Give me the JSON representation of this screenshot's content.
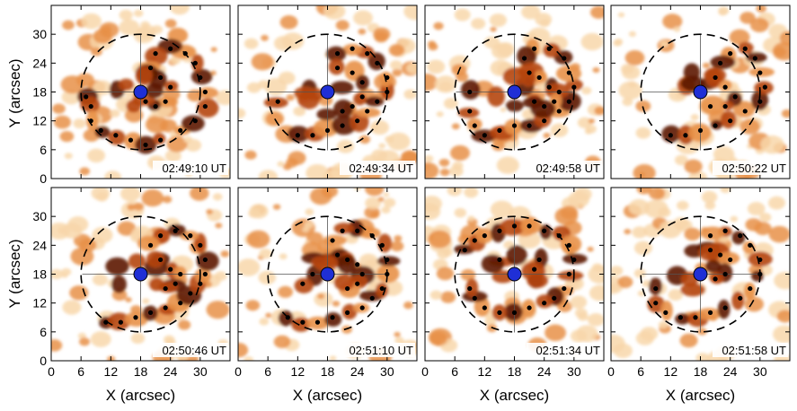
{
  "figure": {
    "x_axis_title": "X (arcsec)",
    "y_axis_title": "Y (arcsec)",
    "x_ticks": [
      0,
      6,
      12,
      18,
      24,
      30
    ],
    "y_ticks": [
      0,
      6,
      12,
      18,
      24,
      30
    ],
    "x_range": [
      0,
      36
    ],
    "y_range": [
      0,
      36
    ],
    "colors": {
      "dark": "#5c1a05",
      "mid": "#b5450f",
      "light": "#e89148",
      "pale": "#f8d7aa",
      "background": "#ffffff",
      "center_marker": "#1f2fd6",
      "dots": "#000000"
    }
  },
  "chart_data": [
    {
      "type": "image-panel",
      "timestamp": "02:49:10 UT",
      "center": [
        18,
        18
      ],
      "dots": [
        [
          7,
          17
        ],
        [
          8,
          15
        ],
        [
          8,
          12
        ],
        [
          10,
          10
        ],
        [
          13,
          9
        ],
        [
          16,
          8
        ],
        [
          19,
          7
        ],
        [
          22,
          8
        ],
        [
          26,
          10
        ],
        [
          29,
          12
        ],
        [
          31,
          15
        ],
        [
          31,
          18
        ],
        [
          30,
          21
        ],
        [
          29,
          24
        ],
        [
          27,
          26
        ],
        [
          24,
          27
        ],
        [
          21,
          26
        ],
        [
          20,
          23
        ],
        [
          22,
          21
        ],
        [
          24,
          19
        ],
        [
          23,
          16
        ],
        [
          21,
          15
        ],
        [
          19,
          16
        ]
      ]
    },
    {
      "type": "image-panel",
      "timestamp": "02:49:34 UT",
      "center": [
        18,
        18
      ],
      "dots": [
        [
          12,
          9
        ],
        [
          15,
          9
        ],
        [
          18,
          10
        ],
        [
          21,
          11
        ],
        [
          24,
          12
        ],
        [
          26,
          14
        ],
        [
          28,
          16
        ],
        [
          30,
          18
        ],
        [
          30,
          21
        ],
        [
          28,
          24
        ],
        [
          26,
          26
        ],
        [
          23,
          27
        ],
        [
          20,
          26
        ],
        [
          20,
          23
        ],
        [
          23,
          22
        ],
        [
          25,
          20
        ],
        [
          25,
          17
        ],
        [
          23,
          15
        ],
        [
          21,
          14
        ],
        [
          8,
          16
        ]
      ]
    },
    {
      "type": "image-panel",
      "timestamp": "02:49:58 UT",
      "center": [
        18,
        18
      ],
      "dots": [
        [
          9,
          18
        ],
        [
          9,
          14
        ],
        [
          10,
          11
        ],
        [
          12,
          9
        ],
        [
          15,
          10
        ],
        [
          18,
          11
        ],
        [
          21,
          11
        ],
        [
          24,
          12
        ],
        [
          27,
          14
        ],
        [
          29,
          16
        ],
        [
          30,
          19
        ],
        [
          29,
          22
        ],
        [
          28,
          25
        ],
        [
          25,
          27
        ],
        [
          22,
          27
        ],
        [
          20,
          25
        ],
        [
          21,
          22
        ],
        [
          23,
          21
        ],
        [
          25,
          19
        ],
        [
          27,
          18
        ],
        [
          26,
          16
        ],
        [
          24,
          15
        ],
        [
          22,
          16
        ]
      ]
    },
    {
      "type": "image-panel",
      "timestamp": "02:50:22 UT",
      "center": [
        18,
        18
      ],
      "dots": [
        [
          12,
          9
        ],
        [
          15,
          9
        ],
        [
          18,
          10
        ],
        [
          21,
          11
        ],
        [
          24,
          12
        ],
        [
          27,
          14
        ],
        [
          30,
          16
        ],
        [
          31,
          19
        ],
        [
          30,
          22
        ],
        [
          29,
          25
        ],
        [
          27,
          27
        ],
        [
          24,
          26
        ],
        [
          22,
          24
        ],
        [
          21,
          21
        ],
        [
          23,
          19
        ],
        [
          25,
          17
        ],
        [
          23,
          15
        ],
        [
          20,
          15
        ]
      ]
    },
    {
      "type": "image-panel",
      "timestamp": "02:50:46 UT",
      "center": [
        18,
        18
      ],
      "dots": [
        [
          11,
          8
        ],
        [
          14,
          8
        ],
        [
          17,
          9
        ],
        [
          20,
          10
        ],
        [
          23,
          11
        ],
        [
          26,
          12
        ],
        [
          28,
          14
        ],
        [
          30,
          16
        ],
        [
          31,
          18
        ],
        [
          31,
          21
        ],
        [
          30,
          24
        ],
        [
          28,
          26
        ],
        [
          25,
          27
        ],
        [
          22,
          26
        ],
        [
          20,
          24
        ],
        [
          22,
          21
        ],
        [
          24,
          19
        ],
        [
          26,
          18
        ],
        [
          25,
          16
        ],
        [
          23,
          15
        ]
      ]
    },
    {
      "type": "image-panel",
      "timestamp": "02:51:10 UT",
      "center": [
        18,
        18
      ],
      "dots": [
        [
          10,
          9
        ],
        [
          13,
          8
        ],
        [
          16,
          8
        ],
        [
          19,
          9
        ],
        [
          22,
          10
        ],
        [
          25,
          11
        ],
        [
          27,
          13
        ],
        [
          29,
          15
        ],
        [
          30,
          18
        ],
        [
          30,
          21
        ],
        [
          29,
          24
        ],
        [
          27,
          26
        ],
        [
          24,
          27
        ],
        [
          21,
          27
        ],
        [
          19,
          25
        ],
        [
          20,
          22
        ],
        [
          22,
          21
        ],
        [
          24,
          20
        ],
        [
          25,
          18
        ],
        [
          24,
          16
        ],
        [
          22,
          15
        ],
        [
          15,
          18
        ],
        [
          13,
          16
        ]
      ]
    },
    {
      "type": "image-panel",
      "timestamp": "02:51:34 UT",
      "center": [
        18,
        18
      ],
      "dots": [
        [
          8,
          23
        ],
        [
          10,
          25
        ],
        [
          12,
          26
        ],
        [
          15,
          27
        ],
        [
          18,
          28
        ],
        [
          21,
          28
        ],
        [
          24,
          27
        ],
        [
          27,
          26
        ],
        [
          29,
          24
        ],
        [
          30,
          21
        ],
        [
          29,
          18
        ],
        [
          28,
          15
        ],
        [
          26,
          13
        ],
        [
          24,
          12
        ],
        [
          21,
          11
        ],
        [
          18,
          10
        ],
        [
          15,
          10
        ],
        [
          12,
          11
        ],
        [
          10,
          13
        ],
        [
          9,
          15
        ],
        [
          22,
          19
        ],
        [
          23,
          21
        ],
        [
          15,
          21
        ]
      ]
    },
    {
      "type": "image-panel",
      "timestamp": "02:51:58 UT",
      "center": [
        18,
        18
      ],
      "dots": [
        [
          9,
          15
        ],
        [
          9,
          12
        ],
        [
          11,
          10
        ],
        [
          14,
          9
        ],
        [
          17,
          9
        ],
        [
          20,
          10
        ],
        [
          23,
          11
        ],
        [
          26,
          13
        ],
        [
          28,
          15
        ],
        [
          30,
          18
        ],
        [
          30,
          21
        ],
        [
          28,
          24
        ],
        [
          26,
          26
        ],
        [
          23,
          27
        ],
        [
          20,
          26
        ],
        [
          20,
          23
        ],
        [
          22,
          22
        ],
        [
          24,
          21
        ],
        [
          23,
          18
        ],
        [
          21,
          17
        ]
      ]
    }
  ]
}
